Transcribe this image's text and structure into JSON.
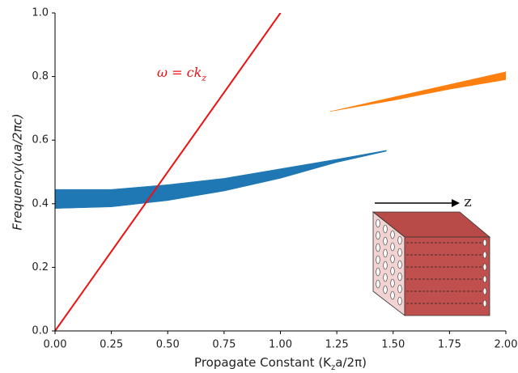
{
  "chart_data": {
    "type": "band",
    "xlabel": [
      "Propagate Constant (K",
      "z",
      "a/2π)"
    ],
    "ylabel": "Frequency(ωa/2πc)",
    "annotation": {
      "text": "ω = ck",
      "subscript": "z"
    },
    "inset_label": "z",
    "xlim": [
      0,
      2
    ],
    "ylim": [
      0,
      1
    ],
    "xticks": [
      {
        "value": 0,
        "label": "0.00"
      },
      {
        "value": 0.25,
        "label": "0.25"
      },
      {
        "value": 0.5,
        "label": "0.50"
      },
      {
        "value": 0.75,
        "label": "0.75"
      },
      {
        "value": 1,
        "label": "1.00"
      },
      {
        "value": 1.25,
        "label": "1.25"
      },
      {
        "value": 1.5,
        "label": "1.50"
      },
      {
        "value": 1.75,
        "label": "1.75"
      },
      {
        "value": 2,
        "label": "2.00"
      }
    ],
    "yticks": [
      {
        "value": 0,
        "label": "0.0"
      },
      {
        "value": 0.2,
        "label": "0.2"
      },
      {
        "value": 0.4,
        "label": "0.4"
      },
      {
        "value": 0.6,
        "label": "0.6"
      },
      {
        "value": 0.8,
        "label": "0.8"
      },
      {
        "value": 1,
        "label": "1.0"
      }
    ],
    "bands": [
      {
        "color": "#1f77b4",
        "x": [
          0,
          0.25,
          0.5,
          0.75,
          1.0,
          1.25,
          1.47
        ],
        "low": [
          0.385,
          0.39,
          0.41,
          0.44,
          0.48,
          0.53,
          0.565
        ],
        "high": [
          0.445,
          0.445,
          0.46,
          0.48,
          0.51,
          0.54,
          0.568
        ]
      },
      {
        "color": "#ff7f0e",
        "x": [
          1.22,
          1.5,
          1.75,
          2.0
        ],
        "low": [
          0.69,
          0.725,
          0.76,
          0.79
        ],
        "high": [
          0.69,
          0.735,
          0.775,
          0.815
        ]
      }
    ],
    "lines": [
      {
        "color": "#ee1111",
        "x": [
          0,
          1
        ],
        "values": [
          0,
          1
        ]
      }
    ]
  }
}
